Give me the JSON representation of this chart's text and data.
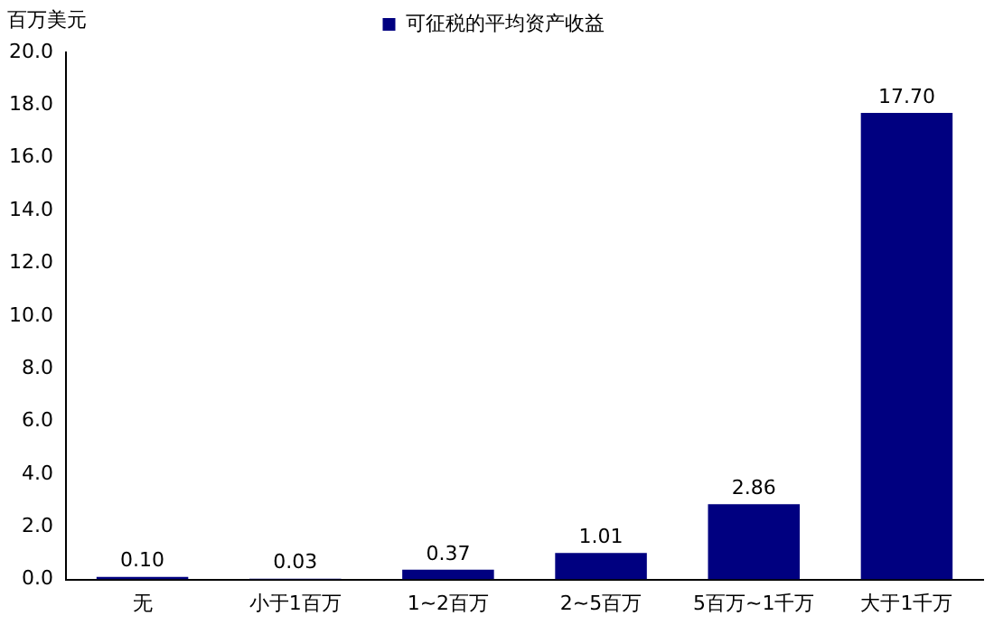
{
  "chart_data": {
    "type": "bar",
    "ylabel": "百万美元",
    "categories": [
      "无",
      "小于1百万",
      "1~2百万",
      "2~5百万",
      "5百万~1千万",
      "大于1千万"
    ],
    "series": [
      {
        "name": "可征税的平均资产收益",
        "color": "#000080",
        "values": [
          0.1,
          0.03,
          0.37,
          1.01,
          2.86,
          17.7
        ],
        "value_labels": [
          "0.10",
          "0.03",
          "0.37",
          "1.01",
          "2.86",
          "17.70"
        ]
      }
    ],
    "ylim": [
      0,
      20
    ],
    "yticks": [
      {
        "value": 0,
        "label": "0.0"
      },
      {
        "value": 2,
        "label": "2.0"
      },
      {
        "value": 4,
        "label": "4.0"
      },
      {
        "value": 6,
        "label": "6.0"
      },
      {
        "value": 8,
        "label": "8.0"
      },
      {
        "value": 10,
        "label": "10.0"
      },
      {
        "value": 12,
        "label": "12.0"
      },
      {
        "value": 14,
        "label": "14.0"
      },
      {
        "value": 16,
        "label": "16.0"
      },
      {
        "value": 18,
        "label": "18.0"
      },
      {
        "value": 20,
        "label": "20.0"
      }
    ],
    "grid": false,
    "legend": "top"
  }
}
